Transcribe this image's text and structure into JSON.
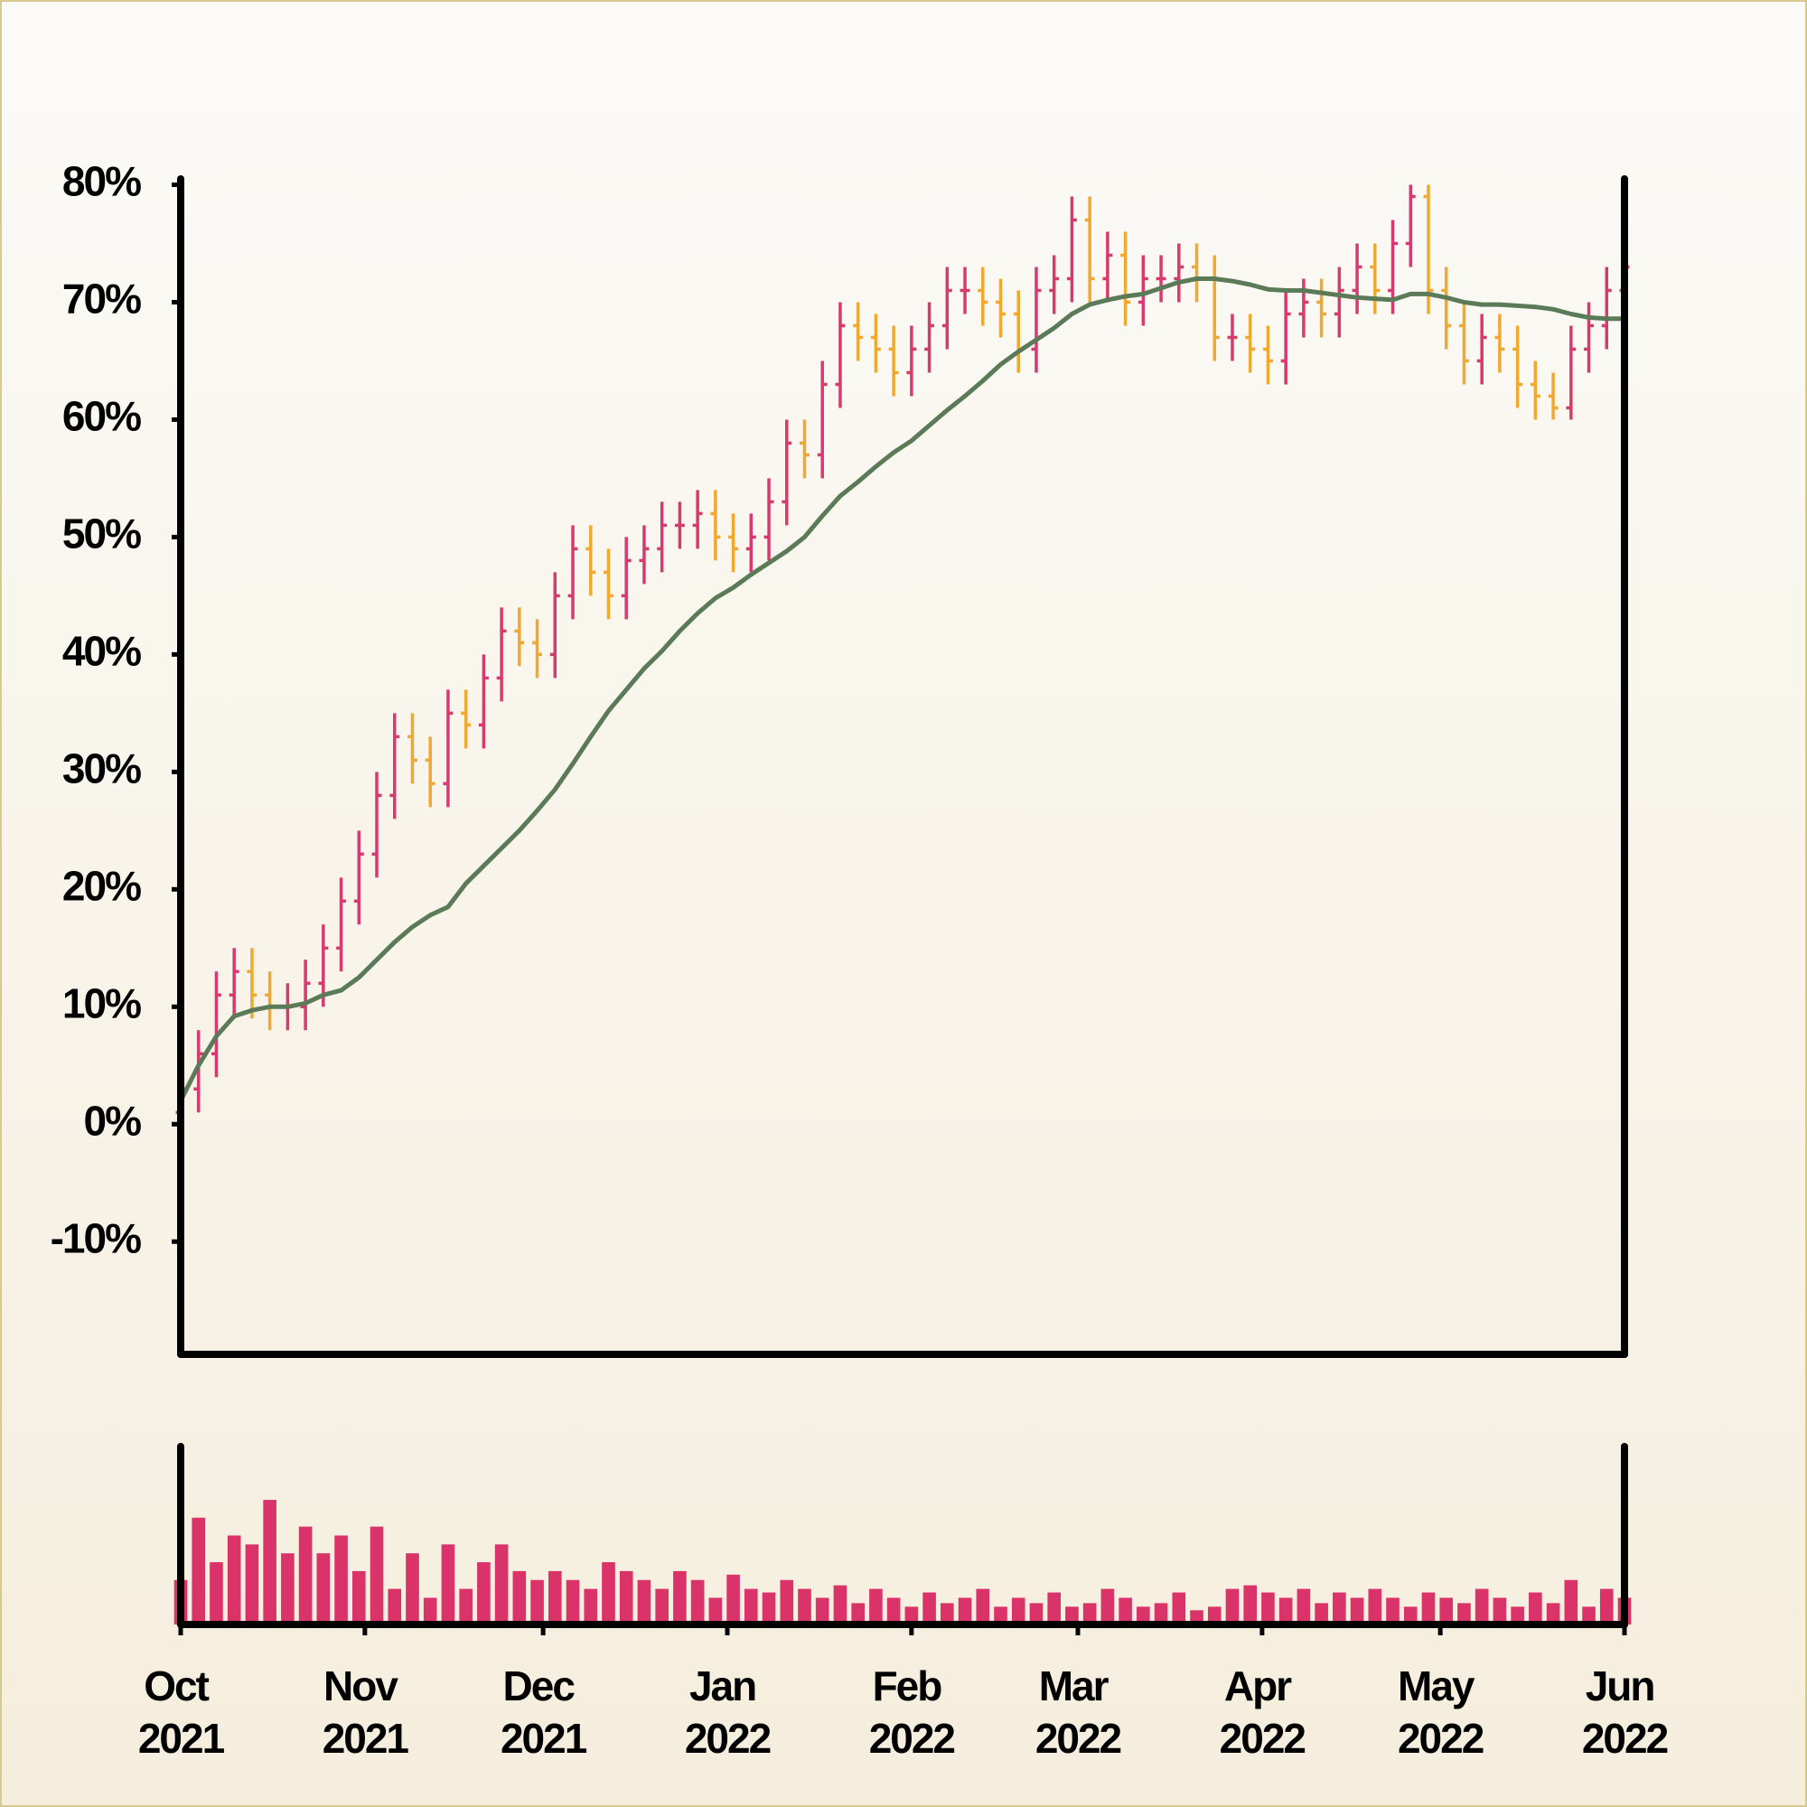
{
  "chart_data": {
    "type": "ohlc",
    "x": [
      0,
      3,
      6,
      9,
      12,
      15,
      18,
      21,
      24,
      27,
      30,
      33,
      36,
      39,
      42,
      45,
      48,
      51,
      54,
      57,
      60,
      63,
      66,
      69,
      72,
      75,
      78,
      81,
      84,
      87,
      90,
      93,
      96,
      99,
      102,
      105,
      108,
      111,
      114,
      117,
      120,
      123,
      126,
      129,
      132,
      135,
      138,
      141,
      144,
      147,
      150,
      153,
      156,
      159,
      162,
      165,
      168,
      171,
      174,
      177,
      180,
      183,
      186,
      189,
      192,
      195,
      198,
      201,
      204,
      207,
      210,
      213,
      216,
      219,
      222,
      225,
      228,
      231,
      234,
      237,
      240,
      243
    ],
    "xlim": [
      0,
      243
    ],
    "xticks": [
      {
        "value": 0,
        "label": "Oct 2021"
      },
      {
        "value": 31,
        "label": "Nov 2021"
      },
      {
        "value": 61,
        "label": "Dec 2021"
      },
      {
        "value": 92,
        "label": "Jan 2022"
      },
      {
        "value": 123,
        "label": "Feb 2022"
      },
      {
        "value": 151,
        "label": "Mar 2022"
      },
      {
        "value": 182,
        "label": "Apr 2022"
      },
      {
        "value": 212,
        "label": "May 2022"
      },
      {
        "value": 243,
        "label": "Jun 2022"
      }
    ],
    "ylim": [
      -19.6,
      80.5
    ],
    "yticks": [
      {
        "value": -10,
        "label": "-10%"
      },
      {
        "value": 0,
        "label": "0%"
      },
      {
        "value": 10,
        "label": "10%"
      },
      {
        "value": 20,
        "label": "20%"
      },
      {
        "value": 30,
        "label": "30%"
      },
      {
        "value": 40,
        "label": "40%"
      },
      {
        "value": 50,
        "label": "50%"
      },
      {
        "value": 60,
        "label": "60%"
      },
      {
        "value": 70,
        "label": "70%"
      },
      {
        "value": 80,
        "label": "80%"
      }
    ],
    "open": [
      1,
      3,
      6,
      11,
      13,
      11,
      10,
      10,
      12,
      15,
      19,
      23,
      28,
      33,
      31,
      29,
      35,
      34,
      38,
      42,
      41,
      40,
      45,
      49,
      47,
      45,
      48,
      49,
      51,
      51,
      52,
      50,
      49,
      50,
      53,
      58,
      57,
      63,
      68,
      67,
      66,
      64,
      66,
      68,
      71,
      71,
      70,
      69,
      66,
      71,
      72,
      77,
      72,
      74,
      70,
      72,
      72,
      73,
      72,
      67,
      67,
      66,
      65,
      69,
      70,
      69,
      71,
      73,
      71,
      75,
      79,
      71,
      68,
      65,
      67,
      66,
      63,
      62,
      61,
      66,
      68,
      71
    ],
    "high": [
      5,
      8,
      13,
      15,
      15,
      13,
      12,
      14,
      17,
      21,
      25,
      30,
      35,
      35,
      33,
      37,
      37,
      40,
      44,
      44,
      43,
      47,
      51,
      51,
      49,
      50,
      51,
      53,
      53,
      54,
      54,
      52,
      52,
      55,
      60,
      60,
      65,
      70,
      70,
      69,
      68,
      68,
      70,
      73,
      73,
      73,
      72,
      71,
      73,
      74,
      79,
      79,
      76,
      76,
      74,
      74,
      75,
      75,
      74,
      69,
      69,
      68,
      71,
      72,
      72,
      73,
      75,
      75,
      77,
      80,
      80,
      73,
      70,
      69,
      69,
      68,
      65,
      64,
      68,
      70,
      73,
      75
    ],
    "low": [
      -1,
      1,
      4,
      9,
      9,
      8,
      8,
      8,
      10,
      13,
      17,
      21,
      26,
      29,
      27,
      27,
      32,
      32,
      36,
      39,
      38,
      38,
      43,
      45,
      43,
      43,
      46,
      47,
      49,
      49,
      48,
      47,
      47,
      48,
      51,
      55,
      55,
      61,
      65,
      64,
      62,
      62,
      64,
      66,
      69,
      68,
      67,
      64,
      64,
      69,
      70,
      70,
      70,
      68,
      68,
      70,
      70,
      70,
      65,
      65,
      64,
      63,
      63,
      67,
      67,
      67,
      69,
      69,
      69,
      73,
      69,
      66,
      63,
      63,
      64,
      61,
      60,
      60,
      60,
      64,
      66,
      69
    ],
    "close": [
      3,
      6,
      11,
      13,
      11,
      10,
      10,
      12,
      15,
      19,
      23,
      28,
      33,
      31,
      29,
      35,
      34,
      38,
      42,
      41,
      40,
      45,
      49,
      47,
      45,
      48,
      49,
      51,
      51,
      52,
      50,
      49,
      50,
      53,
      58,
      57,
      63,
      68,
      67,
      66,
      64,
      66,
      68,
      71,
      71,
      70,
      69,
      66,
      71,
      72,
      77,
      72,
      74,
      70,
      72,
      72,
      73,
      72,
      67,
      67,
      66,
      65,
      69,
      70,
      69,
      71,
      73,
      71,
      75,
      79,
      71,
      68,
      65,
      67,
      66,
      63,
      62,
      61,
      66,
      68,
      71,
      73
    ],
    "up_color": "#d63a6e",
    "down_color": "#f0a830",
    "moving_average": {
      "color": "#5b7a57",
      "values": [
        2,
        5,
        7.5,
        9.2,
        9.7,
        10,
        10,
        10.3,
        11,
        11.4,
        12.5,
        14,
        15.5,
        16.8,
        17.8,
        18.5,
        20.5,
        22,
        23.5,
        25,
        26.7,
        28.5,
        30.7,
        33,
        35.2,
        37,
        38.8,
        40.3,
        42,
        43.5,
        44.8,
        45.7,
        46.8,
        47.8,
        48.8,
        50,
        51.8,
        53.5,
        54.7,
        56,
        57.2,
        58.2,
        59.5,
        60.8,
        62,
        63.3,
        64.7,
        65.8,
        66.8,
        67.8,
        69,
        69.8,
        70.2,
        70.5,
        70.7,
        71.2,
        71.7,
        72,
        72,
        71.8,
        71.5,
        71.1,
        71,
        71,
        70.8,
        70.6,
        70.4,
        70.3,
        70.2,
        70.7,
        70.7,
        70.4,
        70,
        69.8,
        69.8,
        69.7,
        69.6,
        69.4,
        69,
        68.7,
        68.6,
        68.6
      ]
    },
    "volume": {
      "color": "#d9336a",
      "ylim": [
        0,
        100
      ],
      "values": [
        25,
        60,
        35,
        50,
        45,
        70,
        40,
        55,
        40,
        50,
        30,
        55,
        20,
        40,
        15,
        45,
        20,
        35,
        45,
        30,
        25,
        30,
        25,
        20,
        35,
        30,
        25,
        20,
        30,
        25,
        15,
        28,
        20,
        18,
        25,
        20,
        15,
        22,
        12,
        20,
        15,
        10,
        18,
        12,
        15,
        20,
        10,
        15,
        12,
        18,
        10,
        12,
        20,
        15,
        10,
        12,
        18,
        8,
        10,
        20,
        22,
        18,
        15,
        20,
        12,
        18,
        15,
        20,
        15,
        10,
        18,
        15,
        12,
        20,
        15,
        10,
        18,
        12,
        25,
        10,
        20,
        15
      ]
    }
  }
}
